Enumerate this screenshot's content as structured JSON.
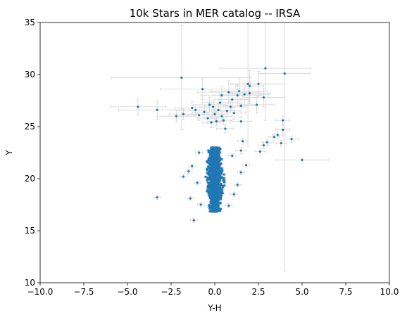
{
  "chart_data": {
    "type": "scatter",
    "title": "10k Stars in MER catalog -- IRSA",
    "xlabel": "Y-H",
    "ylabel": "Y",
    "xlim": [
      -10,
      10
    ],
    "ylim": [
      10,
      35
    ],
    "xticks": [
      -10,
      -7.5,
      -5,
      -2.5,
      0,
      2.5,
      5,
      7.5,
      10
    ],
    "xtick_labels": [
      "−10.0",
      "−7.5",
      "−5.0",
      "−2.5",
      "0.0",
      "2.5",
      "5.0",
      "7.5",
      "10.0"
    ],
    "yticks": [
      10,
      15,
      20,
      25,
      30,
      35
    ],
    "ytick_labels": [
      "10",
      "15",
      "20",
      "25",
      "30",
      "35"
    ],
    "grid": false,
    "legend": "none",
    "marker_color": "#1f77b4",
    "errorbar_color": "#d3d3d3",
    "series": [
      {
        "points": [
          {
            "x": -4.4,
            "y": 26.9,
            "xerr": 1.6,
            "yerr": 0.8
          },
          {
            "x": -3.3,
            "y": 26.6,
            "xerr": 2.2,
            "yerr": 0.9
          },
          {
            "x": -2.2,
            "y": 26.0,
            "xerr": 1.1,
            "yerr": 0.6
          },
          {
            "x": -1.9,
            "y": 29.7,
            "xerr": 4.0,
            "yerr": 5.0
          },
          {
            "x": -1.8,
            "y": 26.2,
            "xerr": 0.8,
            "yerr": 0.5
          },
          {
            "x": -1.3,
            "y": 26.8,
            "xerr": 1.0,
            "yerr": 0.6
          },
          {
            "x": -1.1,
            "y": 26.6,
            "xerr": 0.9,
            "yerr": 0.5
          },
          {
            "x": -0.9,
            "y": 26.1,
            "xerr": 0.8,
            "yerr": 0.5
          },
          {
            "x": -0.6,
            "y": 26.4,
            "xerr": 0.7,
            "yerr": 0.6
          },
          {
            "x": -0.4,
            "y": 25.8,
            "xerr": 0.6,
            "yerr": 0.5
          },
          {
            "x": -0.3,
            "y": 27.1,
            "xerr": 0.9,
            "yerr": 0.7
          },
          {
            "x": -0.2,
            "y": 25.4,
            "xerr": 0.5,
            "yerr": 0.5
          },
          {
            "x": -0.1,
            "y": 26.9,
            "xerr": 0.8,
            "yerr": 0.6
          },
          {
            "x": 0.0,
            "y": 26.2,
            "xerr": 0.7,
            "yerr": 0.5
          },
          {
            "x": 0.1,
            "y": 25.5,
            "xerr": 0.5,
            "yerr": 0.4
          },
          {
            "x": 0.2,
            "y": 26.6,
            "xerr": 0.8,
            "yerr": 0.6
          },
          {
            "x": 0.3,
            "y": 27.3,
            "xerr": 1.0,
            "yerr": 0.8
          },
          {
            "x": 0.4,
            "y": 26.0,
            "xerr": 0.6,
            "yerr": 0.5
          },
          {
            "x": 0.5,
            "y": 25.6,
            "xerr": 0.5,
            "yerr": 0.4
          },
          {
            "x": 0.6,
            "y": 24.8,
            "xerr": 0.5,
            "yerr": 0.4
          },
          {
            "x": 0.7,
            "y": 26.5,
            "xerr": 0.8,
            "yerr": 0.6
          },
          {
            "x": 0.9,
            "y": 26.9,
            "xerr": 0.9,
            "yerr": 0.6
          },
          {
            "x": 1.0,
            "y": 27.6,
            "xerr": 1.0,
            "yerr": 0.8
          },
          {
            "x": 1.1,
            "y": 26.3,
            "xerr": 0.7,
            "yerr": 0.6
          },
          {
            "x": 1.3,
            "y": 28.0,
            "xerr": 1.4,
            "yerr": 1.0
          },
          {
            "x": 1.4,
            "y": 28.4,
            "xerr": 1.6,
            "yerr": 1.2
          },
          {
            "x": 1.5,
            "y": 27.0,
            "xerr": 1.0,
            "yerr": 0.7
          },
          {
            "x": 1.7,
            "y": 28.1,
            "xerr": 1.4,
            "yerr": 1.0
          },
          {
            "x": 1.9,
            "y": 29.1,
            "xerr": 1.0,
            "yerr": 6.0
          },
          {
            "x": 2.0,
            "y": 28.9,
            "xerr": 0.8,
            "yerr": 1.5
          },
          {
            "x": 2.0,
            "y": 28.2,
            "xerr": 1.2,
            "yerr": 1.0
          },
          {
            "x": 2.4,
            "y": 27.1,
            "xerr": 1.0,
            "yerr": 0.8
          },
          {
            "x": 2.5,
            "y": 29.1,
            "xerr": 1.5,
            "yerr": 1.2
          },
          {
            "x": 2.8,
            "y": 27.8,
            "xerr": 1.2,
            "yerr": 0.9
          },
          {
            "x": 2.9,
            "y": 30.6,
            "xerr": 2.6,
            "yerr": 5.0
          },
          {
            "x": 4.0,
            "y": 30.1,
            "xerr": 1.5,
            "yerr": 19.0
          },
          {
            "x": 0.8,
            "y": 28.3,
            "xerr": 1.8,
            "yerr": 1.1
          },
          {
            "x": 0.4,
            "y": 28.0,
            "xerr": 1.2,
            "yerr": 0.9
          },
          {
            "x": -0.7,
            "y": 28.6,
            "xerr": 2.4,
            "yerr": 1.0
          },
          {
            "x": 1.5,
            "y": 25.5,
            "xerr": 0.6,
            "yerr": 0.5
          },
          {
            "x": 1.5,
            "y": 22.7,
            "xerr": 0.3,
            "yerr": 0.3
          },
          {
            "x": 1.6,
            "y": 23.6,
            "xerr": 0.3,
            "yerr": 0.3
          },
          {
            "x": 2.6,
            "y": 22.6,
            "xerr": 0.3,
            "yerr": 0.3
          },
          {
            "x": 2.8,
            "y": 23.2,
            "xerr": 0.3,
            "yerr": 0.3
          },
          {
            "x": 3.0,
            "y": 23.5,
            "xerr": 0.3,
            "yerr": 0.3
          },
          {
            "x": 3.4,
            "y": 24.0,
            "xerr": 0.3,
            "yerr": 0.3
          },
          {
            "x": 3.6,
            "y": 24.2,
            "xerr": 0.3,
            "yerr": 0.3
          },
          {
            "x": 3.9,
            "y": 25.6,
            "xerr": 0.4,
            "yerr": 0.4
          },
          {
            "x": 3.9,
            "y": 24.7,
            "xerr": 0.4,
            "yerr": 0.4
          },
          {
            "x": 3.8,
            "y": 23.4,
            "xerr": 0.3,
            "yerr": 0.3
          },
          {
            "x": 4.4,
            "y": 23.8,
            "xerr": 0.4,
            "yerr": 0.3
          },
          {
            "x": 5.0,
            "y": 21.8,
            "xerr": 1.5,
            "yerr": 0.2
          },
          {
            "x": -3.3,
            "y": 18.2,
            "xerr": 0.2,
            "yerr": 0.2
          },
          {
            "x": -1.2,
            "y": 16.0,
            "xerr": 0.2,
            "yerr": 0.2
          },
          {
            "x": -1.4,
            "y": 18.1,
            "xerr": 0.2,
            "yerr": 0.2
          },
          {
            "x": -1.8,
            "y": 20.2,
            "xerr": 0.2,
            "yerr": 0.2
          },
          {
            "x": -1.5,
            "y": 20.7,
            "xerr": 0.2,
            "yerr": 0.2
          },
          {
            "x": -1.3,
            "y": 21.2,
            "xerr": 0.2,
            "yerr": 0.2
          },
          {
            "x": -1.0,
            "y": 19.6,
            "xerr": 0.2,
            "yerr": 0.2
          },
          {
            "x": -0.9,
            "y": 22.5,
            "xerr": 0.2,
            "yerr": 0.2
          },
          {
            "x": -0.8,
            "y": 17.5,
            "xerr": 0.2,
            "yerr": 0.2
          },
          {
            "x": 1.8,
            "y": 21.3,
            "xerr": 0.2,
            "yerr": 0.2
          },
          {
            "x": 1.5,
            "y": 20.6,
            "xerr": 0.2,
            "yerr": 0.2
          },
          {
            "x": 1.3,
            "y": 19.4,
            "xerr": 0.2,
            "yerr": 0.2
          },
          {
            "x": 1.1,
            "y": 18.5,
            "xerr": 0.2,
            "yerr": 0.2
          },
          {
            "x": 1.0,
            "y": 22.2,
            "xerr": 0.2,
            "yerr": 0.2
          },
          {
            "x": 0.8,
            "y": 17.4,
            "xerr": 0.2,
            "yerr": 0.2
          }
        ],
        "dense_cluster": {
          "x_center": 0.0,
          "x_spread": 0.45,
          "y_min": 16.8,
          "y_max": 23.0,
          "count": 1100
        }
      }
    ]
  }
}
